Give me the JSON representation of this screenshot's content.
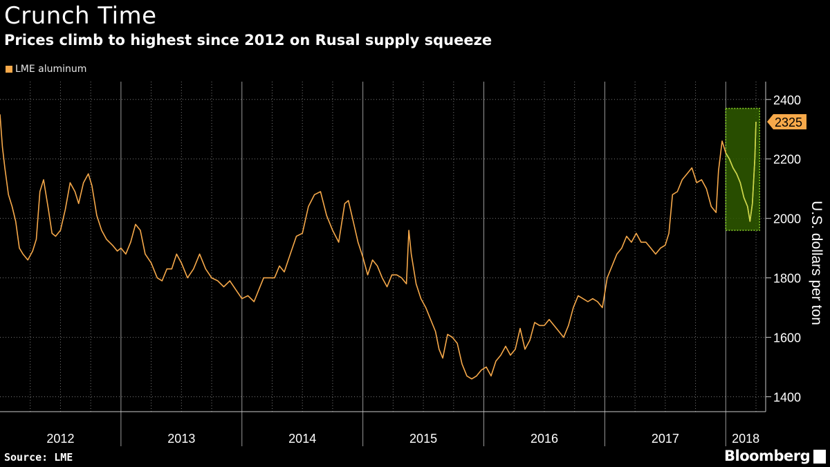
{
  "header": {
    "title": "Crunch Time",
    "subtitle": "Prices climb to highest since 2012 on Rusal supply squeeze"
  },
  "footer": {
    "source": "Source: LME",
    "brand": "Bloomberg"
  },
  "colors": {
    "series": "#f7a94a",
    "highlight_fill": "#2f5a00",
    "highlight_stroke": "#8bd22a",
    "highlight_series": "#c8d94a",
    "grid": "#7a7a7a"
  },
  "chart_data": {
    "type": "line",
    "title": "Crunch Time",
    "subtitle": "Prices climb to highest since 2012 on Rusal supply squeeze",
    "xlabel": "",
    "ylabel": "U.S. dollars per ton",
    "ylim": [
      1350,
      2460
    ],
    "yticks": [
      1400,
      1600,
      1800,
      2000,
      2200,
      2400
    ],
    "xlim": [
      2012.0,
      2018.33
    ],
    "year_labels": [
      "2012",
      "2013",
      "2014",
      "2015",
      "2016",
      "2017",
      "2018"
    ],
    "legend": [
      "LME aluminum"
    ],
    "legend_position": "top-left",
    "last_value_label": "2325",
    "highlight": {
      "x_start": 2018.0,
      "x_end": 2018.28,
      "y_low": 1960,
      "y_high": 2370
    },
    "series": [
      {
        "name": "LME aluminum",
        "points": [
          [
            2012.0,
            2350
          ],
          [
            2012.02,
            2240
          ],
          [
            2012.04,
            2170
          ],
          [
            2012.07,
            2080
          ],
          [
            2012.1,
            2040
          ],
          [
            2012.13,
            1990
          ],
          [
            2012.16,
            1900
          ],
          [
            2012.19,
            1880
          ],
          [
            2012.23,
            1860
          ],
          [
            2012.27,
            1890
          ],
          [
            2012.3,
            1930
          ],
          [
            2012.33,
            2090
          ],
          [
            2012.36,
            2130
          ],
          [
            2012.4,
            2030
          ],
          [
            2012.43,
            1950
          ],
          [
            2012.46,
            1940
          ],
          [
            2012.5,
            1960
          ],
          [
            2012.54,
            2030
          ],
          [
            2012.58,
            2120
          ],
          [
            2012.62,
            2090
          ],
          [
            2012.65,
            2050
          ],
          [
            2012.69,
            2120
          ],
          [
            2012.73,
            2150
          ],
          [
            2012.76,
            2110
          ],
          [
            2012.8,
            2010
          ],
          [
            2012.84,
            1960
          ],
          [
            2012.88,
            1930
          ],
          [
            2012.93,
            1910
          ],
          [
            2012.97,
            1890
          ],
          [
            2013.0,
            1900
          ],
          [
            2013.04,
            1880
          ],
          [
            2013.08,
            1920
          ],
          [
            2013.12,
            1980
          ],
          [
            2013.16,
            1960
          ],
          [
            2013.2,
            1880
          ],
          [
            2013.25,
            1850
          ],
          [
            2013.3,
            1800
          ],
          [
            2013.34,
            1790
          ],
          [
            2013.38,
            1830
          ],
          [
            2013.42,
            1830
          ],
          [
            2013.46,
            1880
          ],
          [
            2013.5,
            1850
          ],
          [
            2013.55,
            1800
          ],
          [
            2013.6,
            1830
          ],
          [
            2013.65,
            1880
          ],
          [
            2013.7,
            1830
          ],
          [
            2013.75,
            1800
          ],
          [
            2013.8,
            1790
          ],
          [
            2013.85,
            1770
          ],
          [
            2013.9,
            1790
          ],
          [
            2013.95,
            1760
          ],
          [
            2014.0,
            1730
          ],
          [
            2014.05,
            1740
          ],
          [
            2014.1,
            1720
          ],
          [
            2014.14,
            1760
          ],
          [
            2014.18,
            1800
          ],
          [
            2014.22,
            1800
          ],
          [
            2014.27,
            1800
          ],
          [
            2014.31,
            1840
          ],
          [
            2014.35,
            1820
          ],
          [
            2014.4,
            1880
          ],
          [
            2014.45,
            1940
          ],
          [
            2014.5,
            1950
          ],
          [
            2014.55,
            2040
          ],
          [
            2014.6,
            2080
          ],
          [
            2014.65,
            2090
          ],
          [
            2014.7,
            2010
          ],
          [
            2014.75,
            1960
          ],
          [
            2014.8,
            1920
          ],
          [
            2014.85,
            2050
          ],
          [
            2014.88,
            2060
          ],
          [
            2014.92,
            1990
          ],
          [
            2014.96,
            1920
          ],
          [
            2015.0,
            1870
          ],
          [
            2015.04,
            1810
          ],
          [
            2015.08,
            1860
          ],
          [
            2015.12,
            1840
          ],
          [
            2015.16,
            1800
          ],
          [
            2015.2,
            1770
          ],
          [
            2015.24,
            1810
          ],
          [
            2015.28,
            1810
          ],
          [
            2015.32,
            1800
          ],
          [
            2015.36,
            1780
          ],
          [
            2015.38,
            1960
          ],
          [
            2015.4,
            1880
          ],
          [
            2015.44,
            1780
          ],
          [
            2015.48,
            1730
          ],
          [
            2015.52,
            1700
          ],
          [
            2015.56,
            1660
          ],
          [
            2015.6,
            1620
          ],
          [
            2015.63,
            1560
          ],
          [
            2015.66,
            1530
          ],
          [
            2015.7,
            1610
          ],
          [
            2015.74,
            1600
          ],
          [
            2015.78,
            1580
          ],
          [
            2015.82,
            1510
          ],
          [
            2015.86,
            1470
          ],
          [
            2015.9,
            1460
          ],
          [
            2015.94,
            1470
          ],
          [
            2015.98,
            1490
          ],
          [
            2016.02,
            1500
          ],
          [
            2016.06,
            1470
          ],
          [
            2016.1,
            1520
          ],
          [
            2016.14,
            1540
          ],
          [
            2016.18,
            1570
          ],
          [
            2016.22,
            1540
          ],
          [
            2016.26,
            1560
          ],
          [
            2016.3,
            1630
          ],
          [
            2016.34,
            1560
          ],
          [
            2016.38,
            1590
          ],
          [
            2016.42,
            1650
          ],
          [
            2016.46,
            1640
          ],
          [
            2016.5,
            1640
          ],
          [
            2016.54,
            1660
          ],
          [
            2016.58,
            1640
          ],
          [
            2016.62,
            1620
          ],
          [
            2016.66,
            1600
          ],
          [
            2016.7,
            1640
          ],
          [
            2016.74,
            1700
          ],
          [
            2016.78,
            1740
          ],
          [
            2016.82,
            1730
          ],
          [
            2016.86,
            1720
          ],
          [
            2016.9,
            1730
          ],
          [
            2016.94,
            1720
          ],
          [
            2016.98,
            1700
          ],
          [
            2017.02,
            1800
          ],
          [
            2017.06,
            1840
          ],
          [
            2017.1,
            1880
          ],
          [
            2017.14,
            1900
          ],
          [
            2017.18,
            1940
          ],
          [
            2017.22,
            1920
          ],
          [
            2017.26,
            1950
          ],
          [
            2017.3,
            1920
          ],
          [
            2017.34,
            1920
          ],
          [
            2017.38,
            1900
          ],
          [
            2017.42,
            1880
          ],
          [
            2017.46,
            1900
          ],
          [
            2017.5,
            1910
          ],
          [
            2017.53,
            1950
          ],
          [
            2017.56,
            2080
          ],
          [
            2017.6,
            2090
          ],
          [
            2017.64,
            2130
          ],
          [
            2017.68,
            2150
          ],
          [
            2017.72,
            2170
          ],
          [
            2017.76,
            2120
          ],
          [
            2017.8,
            2130
          ],
          [
            2017.84,
            2100
          ],
          [
            2017.88,
            2040
          ],
          [
            2017.92,
            2020
          ],
          [
            2017.94,
            2160
          ],
          [
            2017.97,
            2260
          ],
          [
            2018.0,
            2220
          ],
          [
            2018.03,
            2200
          ],
          [
            2018.06,
            2170
          ],
          [
            2018.09,
            2150
          ],
          [
            2018.12,
            2120
          ],
          [
            2018.15,
            2070
          ],
          [
            2018.18,
            2040
          ],
          [
            2018.2,
            1990
          ],
          [
            2018.22,
            2050
          ],
          [
            2018.24,
            2200
          ],
          [
            2018.25,
            2325
          ]
        ]
      }
    ]
  }
}
